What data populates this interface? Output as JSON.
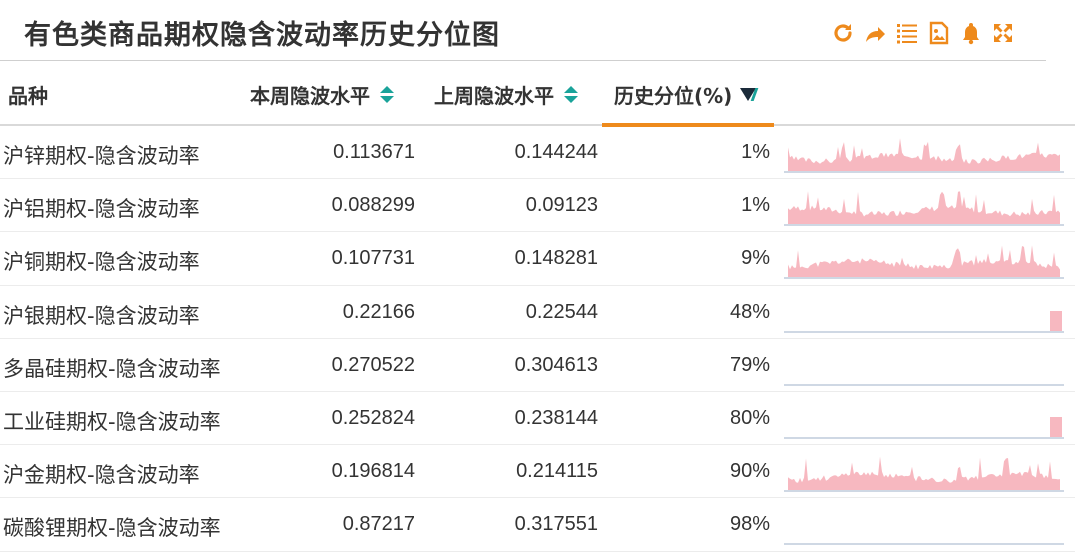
{
  "header": {
    "title": "有色类商品期权隐含波动率历史分位图",
    "tools": [
      {
        "icon": "refresh-icon",
        "color": "#ee8a1c"
      },
      {
        "icon": "share-icon",
        "color": "#ee8a1c"
      },
      {
        "icon": "list-icon",
        "color": "#ee8a1c"
      },
      {
        "icon": "image-icon",
        "color": "#ee8a1c"
      },
      {
        "icon": "bell-icon",
        "color": "#ee8a1c"
      },
      {
        "icon": "expand-icon",
        "color": "#ee8a1c"
      }
    ]
  },
  "columns": {
    "name": "品种",
    "current": "本周隐波水平",
    "previous": "上周隐波水平",
    "percentile": "历史分位(%)"
  },
  "sort": {
    "column": "percentile",
    "direction": "desc"
  },
  "colors": {
    "accent": "#ee8a1c",
    "sort_arrow": "#1aa39a",
    "spark_fill": "#f7b8c0",
    "spark_axis": "#9fb0c8"
  },
  "rows": [
    {
      "name": "沪锌期权-隐含波动率",
      "current": "0.113671",
      "previous": "0.144244",
      "percentile": "1%",
      "spark": "full",
      "spark_seed": 3
    },
    {
      "name": "沪铝期权-隐含波动率",
      "current": "0.088299",
      "previous": "0.09123",
      "percentile": "1%",
      "spark": "full",
      "spark_seed": 7
    },
    {
      "name": "沪铜期权-隐含波动率",
      "current": "0.107731",
      "previous": "0.148281",
      "percentile": "9%",
      "spark": "full",
      "spark_seed": 11
    },
    {
      "name": "沪银期权-隐含波动率",
      "current": "0.22166",
      "previous": "0.22544",
      "percentile": "48%",
      "spark": "tail",
      "spark_seed": 13
    },
    {
      "name": "多晶硅期权-隐含波动率",
      "current": "0.270522",
      "previous": "0.304613",
      "percentile": "79%",
      "spark": "none",
      "spark_seed": 17
    },
    {
      "name": "工业硅期权-隐含波动率",
      "current": "0.252824",
      "previous": "0.238144",
      "percentile": "80%",
      "spark": "tail",
      "spark_seed": 19
    },
    {
      "name": "沪金期权-隐含波动率",
      "current": "0.196814",
      "previous": "0.214115",
      "percentile": "90%",
      "spark": "full",
      "spark_seed": 23
    },
    {
      "name": "碳酸锂期权-隐含波动率",
      "current": "0.87217",
      "previous": "0.317551",
      "percentile": "98%",
      "spark": "none",
      "spark_seed": 29
    }
  ]
}
